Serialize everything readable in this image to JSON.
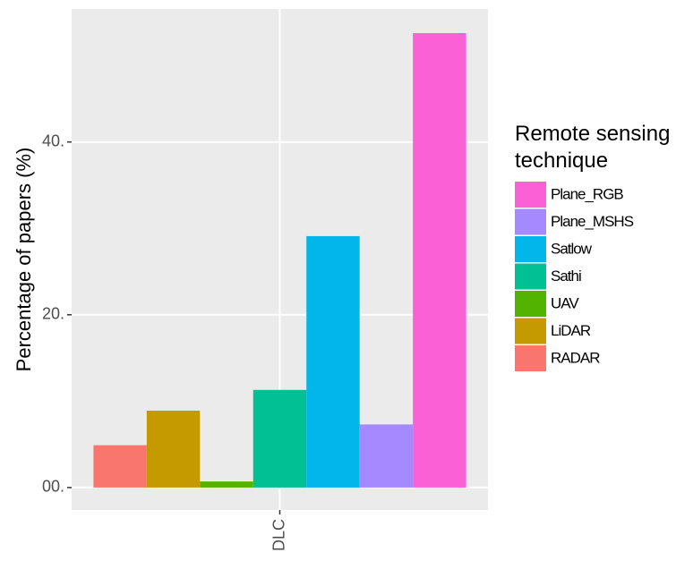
{
  "chart_data": {
    "type": "bar",
    "y_label": "Percentage of papers (%)",
    "legend_title": "Remote sensing technique",
    "categories": [
      "DLC"
    ],
    "series": [
      {
        "name": "RADAR",
        "color": "#F8766D",
        "values": [
          4.9
        ]
      },
      {
        "name": "LiDAR",
        "color": "#C49A00",
        "values": [
          8.9
        ]
      },
      {
        "name": "UAV",
        "color": "#53B400",
        "values": [
          0.7
        ]
      },
      {
        "name": "Sathi",
        "color": "#00C094",
        "values": [
          11.3
        ]
      },
      {
        "name": "Satlow",
        "color": "#00B6EB",
        "values": [
          29.1
        ]
      },
      {
        "name": "Plane_MSHS",
        "color": "#A58AFF",
        "values": [
          7.3
        ]
      },
      {
        "name": "Plane_RGB",
        "color": "#FB61D7",
        "values": [
          52.6
        ]
      }
    ],
    "ylim": [
      -2.6,
      55.4
    ],
    "yticks": [
      {
        "value": 0,
        "label": "00."
      },
      {
        "value": 20,
        "label": "20."
      },
      {
        "value": 40,
        "label": "40."
      }
    ],
    "grid": true,
    "legend": "right"
  }
}
